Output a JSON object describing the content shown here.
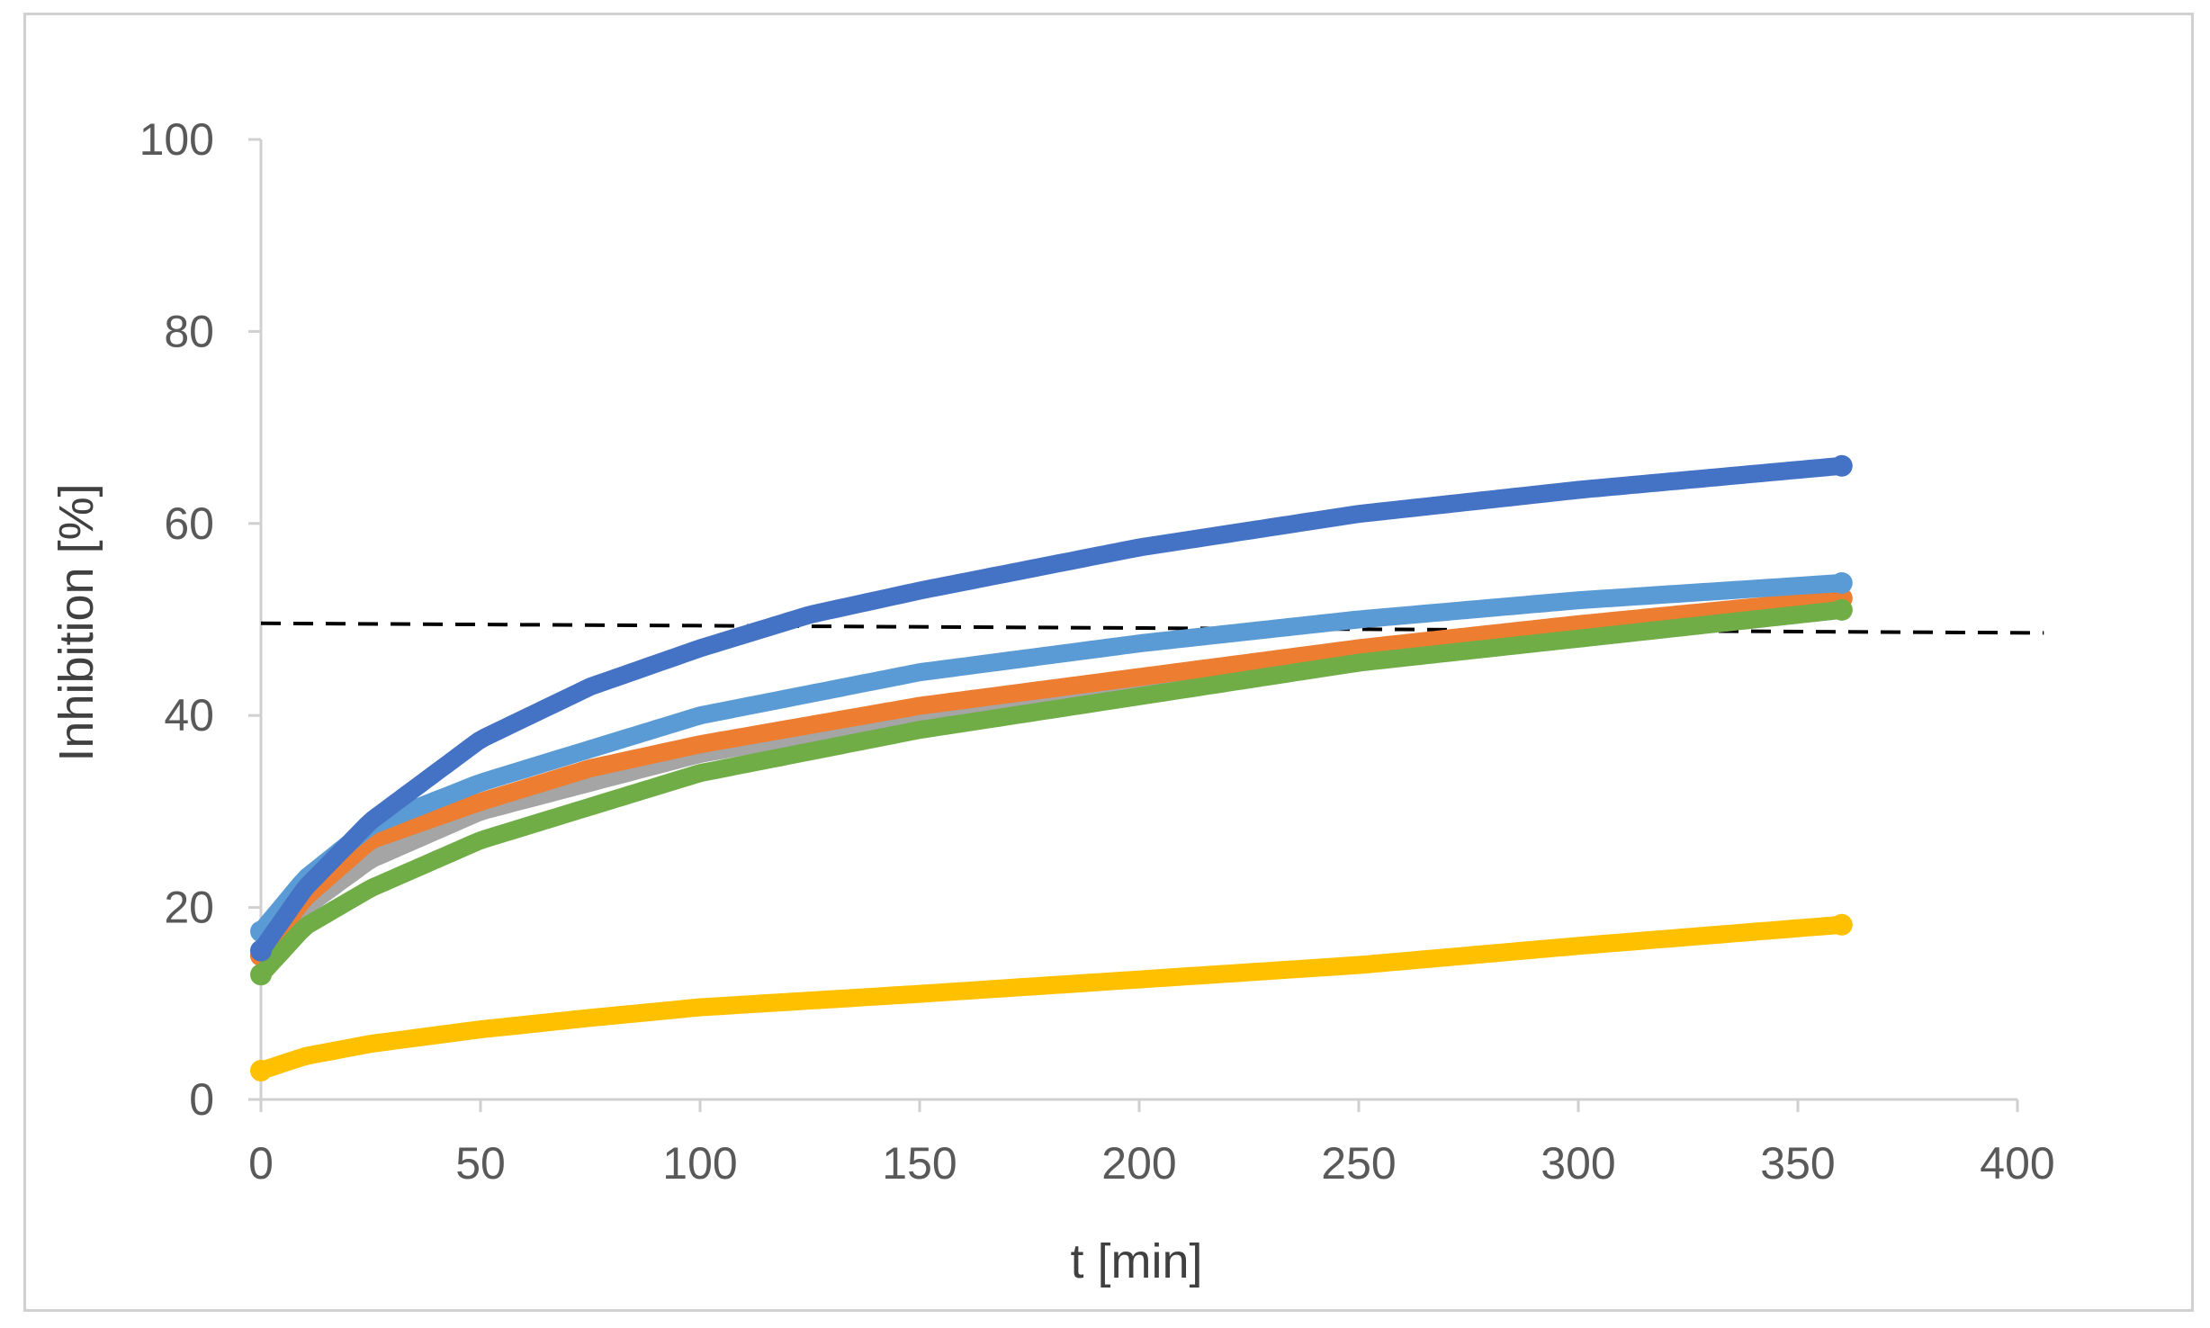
{
  "chart_data": {
    "type": "scatter",
    "title": "",
    "xlabel": "t [min]",
    "ylabel": "Inhibition [%]",
    "xlim": [
      0,
      400
    ],
    "ylim": [
      0,
      100
    ],
    "xticks": [
      0,
      50,
      100,
      150,
      200,
      250,
      300,
      350,
      400
    ],
    "yticks": [
      0,
      20,
      40,
      60,
      80,
      100
    ],
    "grid": false,
    "legend": "none",
    "reference_line": {
      "style": "dashed",
      "color": "#000000",
      "x": [
        0,
        406
      ],
      "y": [
        49.6,
        48.6
      ]
    },
    "series": [
      {
        "name": "gray",
        "color": "#a5a5a5",
        "x": [
          0,
          10,
          25,
          50,
          75,
          100,
          150,
          200,
          250,
          300,
          360
        ],
        "y": [
          15,
          20,
          25,
          30,
          33,
          36,
          40,
          43,
          46,
          48,
          51
        ]
      },
      {
        "name": "orange",
        "color": "#ed7d31",
        "x": [
          0,
          10,
          25,
          50,
          75,
          100,
          150,
          200,
          250,
          300,
          360
        ],
        "y": [
          15,
          21,
          27,
          31,
          34.5,
          37,
          41,
          44,
          47,
          49.5,
          52.2
        ]
      },
      {
        "name": "green",
        "color": "#70ad47",
        "x": [
          0,
          10,
          25,
          50,
          75,
          100,
          150,
          200,
          250,
          300,
          360
        ],
        "y": [
          13,
          18,
          22,
          27,
          30.5,
          34,
          38.5,
          42,
          45.5,
          48,
          51
        ]
      },
      {
        "name": "light-blue",
        "color": "#5b9bd5",
        "x": [
          0,
          10,
          25,
          50,
          75,
          100,
          150,
          200,
          250,
          300,
          360
        ],
        "y": [
          17.5,
          23,
          28.5,
          33,
          36.5,
          40,
          44.5,
          47.5,
          50,
          52,
          53.8
        ]
      },
      {
        "name": "dark-blue",
        "color": "#4472c4",
        "x": [
          0,
          10,
          25,
          50,
          75,
          100,
          125,
          150,
          200,
          250,
          300,
          360
        ],
        "y": [
          15.5,
          22,
          29,
          37.5,
          43,
          47,
          50.5,
          53,
          57.5,
          61,
          63.5,
          66
        ]
      },
      {
        "name": "yellow",
        "color": "#ffc000",
        "x": [
          0,
          10,
          25,
          50,
          75,
          100,
          150,
          200,
          250,
          300,
          360
        ],
        "y": [
          3,
          4.5,
          5.8,
          7.3,
          8.5,
          9.6,
          11,
          12.5,
          14,
          16,
          18.2
        ]
      }
    ]
  }
}
